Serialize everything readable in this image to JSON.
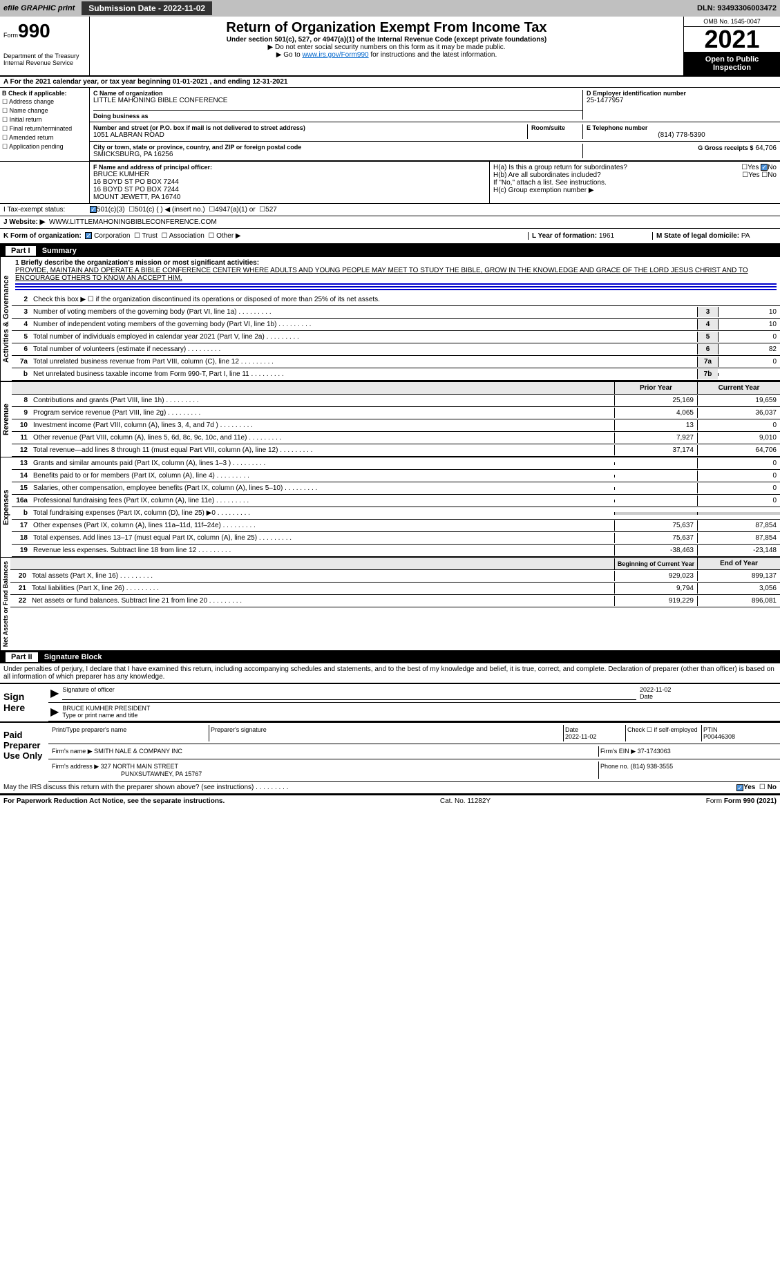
{
  "header": {
    "efile": "efile GRAPHIC print",
    "submission": "Submission Date - 2022-11-02",
    "dln": "DLN: 93493306003472"
  },
  "form": {
    "prefix": "Form",
    "number": "990",
    "title": "Return of Organization Exempt From Income Tax",
    "subtitle": "Under section 501(c), 527, or 4947(a)(1) of the Internal Revenue Code (except private foundations)",
    "note1": "▶ Do not enter social security numbers on this form as it may be made public.",
    "note2": "▶ Go to ",
    "link": "www.irs.gov/Form990",
    "note3": " for instructions and the latest information.",
    "dept": "Department of the Treasury",
    "irs": "Internal Revenue Service",
    "omb": "OMB No. 1545-0047",
    "year": "2021",
    "inspection": "Open to Public Inspection"
  },
  "period": "A For the 2021 calendar year, or tax year beginning 01-01-2021    , and ending 12-31-2021",
  "section_b": {
    "label": "B Check if applicable:",
    "items": [
      "Address change",
      "Name change",
      "Initial return",
      "Final return/terminated",
      "Amended return",
      "Application pending"
    ]
  },
  "section_c": {
    "name_label": "C Name of organization",
    "name": "LITTLE MAHONING BIBLE CONFERENCE",
    "dba_label": "Doing business as",
    "street_label": "Number and street (or P.O. box if mail is not delivered to street address)",
    "street": "1051 ALABRAN ROAD",
    "room_label": "Room/suite",
    "city_label": "City or town, state or province, country, and ZIP or foreign postal code",
    "city": "SMICKSBURG, PA  16256"
  },
  "section_d": {
    "label": "D Employer identification number",
    "value": "25-1477957"
  },
  "section_e": {
    "label": "E Telephone number",
    "value": "(814) 778-5390"
  },
  "section_g": {
    "label": "G Gross receipts $",
    "value": "64,706"
  },
  "section_f": {
    "label": "F  Name and address of principal officer:",
    "name": "BRUCE KUMHER",
    "addr1": "16 BOYD ST PO BOX 7244",
    "addr2": "16 BOYD ST PO BOX 7244",
    "addr3": "MOUNT JEWETT, PA  16740"
  },
  "section_h": {
    "a": "H(a)  Is this a group return for subordinates?",
    "b": "H(b)  Are all subordinates included?",
    "note": "If \"No,\" attach a list. See instructions.",
    "c": "H(c)  Group exemption number ▶",
    "yes": "Yes",
    "no": "No"
  },
  "section_i": {
    "label": "I    Tax-exempt status:",
    "opt1": "501(c)(3)",
    "opt2": "501(c) (  ) ◀ (insert no.)",
    "opt3": "4947(a)(1) or",
    "opt4": "527"
  },
  "section_j": {
    "label": "J   Website: ▶",
    "value": "WWW.LITTLEMAHONINGBIBLECONFERENCE.COM"
  },
  "section_k": {
    "label": "K Form of organization:",
    "corp": "Corporation",
    "trust": "Trust",
    "assoc": "Association",
    "other": "Other ▶"
  },
  "section_l": {
    "label": "L Year of formation:",
    "value": "1961"
  },
  "section_m": {
    "label": "M State of legal domicile:",
    "value": "PA"
  },
  "part1": {
    "header": "Part I",
    "title": "Summary",
    "governance_label": "Activities & Governance",
    "revenue_label": "Revenue",
    "expenses_label": "Expenses",
    "netassets_label": "Net Assets or Fund Balances",
    "line1_label": "1  Briefly describe the organization's mission or most significant activities:",
    "mission": "PROVIDE, MAINTAIN AND OPERATE A BIBLE CONFERENCE CENTER WHERE ADULTS AND YOUNG PEOPLE MAY MEET TO STUDY THE BIBLE, GROW IN THE KNOWLEDGE AND GRACE OF THE LORD JESUS CHRIST AND TO ENCOURAGE OTHERS TO KNOW AN ACCEPT HIM.",
    "line2": "Check this box ▶ ☐  if the organization discontinued its operations or disposed of more than 25% of its net assets.",
    "lines": [
      {
        "num": "3",
        "desc": "Number of voting members of the governing body (Part VI, line 1a)",
        "box": "3",
        "val": "10"
      },
      {
        "num": "4",
        "desc": "Number of independent voting members of the governing body (Part VI, line 1b)",
        "box": "4",
        "val": "10"
      },
      {
        "num": "5",
        "desc": "Total number of individuals employed in calendar year 2021 (Part V, line 2a)",
        "box": "5",
        "val": "0"
      },
      {
        "num": "6",
        "desc": "Total number of volunteers (estimate if necessary)",
        "box": "6",
        "val": "82"
      },
      {
        "num": "7a",
        "desc": "Total unrelated business revenue from Part VIII, column (C), line 12",
        "box": "7a",
        "val": "0"
      },
      {
        "num": "b",
        "desc": "Net unrelated business taxable income from Form 990-T, Part I, line 11",
        "box": "7b",
        "val": ""
      }
    ],
    "prior_year": "Prior Year",
    "current_year": "Current Year",
    "revenue_lines": [
      {
        "num": "8",
        "desc": "Contributions and grants (Part VIII, line 1h)",
        "prior": "25,169",
        "curr": "19,659"
      },
      {
        "num": "9",
        "desc": "Program service revenue (Part VIII, line 2g)",
        "prior": "4,065",
        "curr": "36,037"
      },
      {
        "num": "10",
        "desc": "Investment income (Part VIII, column (A), lines 3, 4, and 7d )",
        "prior": "13",
        "curr": "0"
      },
      {
        "num": "11",
        "desc": "Other revenue (Part VIII, column (A), lines 5, 6d, 8c, 9c, 10c, and 11e)",
        "prior": "7,927",
        "curr": "9,010"
      },
      {
        "num": "12",
        "desc": "Total revenue—add lines 8 through 11 (must equal Part VIII, column (A), line 12)",
        "prior": "37,174",
        "curr": "64,706"
      }
    ],
    "expense_lines": [
      {
        "num": "13",
        "desc": "Grants and similar amounts paid (Part IX, column (A), lines 1–3 )",
        "prior": "",
        "curr": "0"
      },
      {
        "num": "14",
        "desc": "Benefits paid to or for members (Part IX, column (A), line 4)",
        "prior": "",
        "curr": "0"
      },
      {
        "num": "15",
        "desc": "Salaries, other compensation, employee benefits (Part IX, column (A), lines 5–10)",
        "prior": "",
        "curr": "0"
      },
      {
        "num": "16a",
        "desc": "Professional fundraising fees (Part IX, column (A), line 11e)",
        "prior": "",
        "curr": "0"
      },
      {
        "num": "b",
        "desc": "Total fundraising expenses (Part IX, column (D), line 25) ▶0",
        "prior": "—",
        "curr": "—"
      },
      {
        "num": "17",
        "desc": "Other expenses (Part IX, column (A), lines 11a–11d, 11f–24e)",
        "prior": "75,637",
        "curr": "87,854"
      },
      {
        "num": "18",
        "desc": "Total expenses. Add lines 13–17 (must equal Part IX, column (A), line 25)",
        "prior": "75,637",
        "curr": "87,854"
      },
      {
        "num": "19",
        "desc": "Revenue less expenses. Subtract line 18 from line 12",
        "prior": "-38,463",
        "curr": "-23,148"
      }
    ],
    "begin_year": "Beginning of Current Year",
    "end_year": "End of Year",
    "asset_lines": [
      {
        "num": "20",
        "desc": "Total assets (Part X, line 16)",
        "prior": "929,023",
        "curr": "899,137"
      },
      {
        "num": "21",
        "desc": "Total liabilities (Part X, line 26)",
        "prior": "9,794",
        "curr": "3,056"
      },
      {
        "num": "22",
        "desc": "Net assets or fund balances. Subtract line 21 from line 20",
        "prior": "919,229",
        "curr": "896,081"
      }
    ]
  },
  "part2": {
    "header": "Part II",
    "title": "Signature Block",
    "declaration": "Under penalties of perjury, I declare that I have examined this return, including accompanying schedules and statements, and to the best of my knowledge and belief, it is true, correct, and complete. Declaration of preparer (other than officer) is based on all information of which preparer has any knowledge.",
    "sign_here": "Sign Here",
    "sig_officer": "Signature of officer",
    "sig_date": "2022-11-02",
    "date_label": "Date",
    "officer_name": "BRUCE KUMHER  PRESIDENT",
    "type_name": "Type or print name and title",
    "paid_preparer": "Paid Preparer Use Only",
    "preparer_name_label": "Print/Type preparer's name",
    "preparer_sig_label": "Preparer's signature",
    "prep_date": "2022-11-02",
    "check_self": "Check ☐ if self-employed",
    "ptin_label": "PTIN",
    "ptin": "P00446308",
    "firm_name_label": "Firm's name    ▶",
    "firm_name": "SMITH NALE & COMPANY INC",
    "firm_ein_label": "Firm's EIN ▶",
    "firm_ein": "37-1743063",
    "firm_addr_label": "Firm's address ▶",
    "firm_addr": "327 NORTH MAIN STREET",
    "firm_city": "PUNXSUTAWNEY, PA  15767",
    "phone_label": "Phone no.",
    "phone": "(814) 938-3555",
    "discuss": "May the IRS discuss this return with the preparer shown above? (see instructions)",
    "yes": "Yes",
    "no": "No"
  },
  "footer": {
    "paperwork": "For Paperwork Reduction Act Notice, see the separate instructions.",
    "cat": "Cat. No. 11282Y",
    "form": "Form 990 (2021)"
  }
}
